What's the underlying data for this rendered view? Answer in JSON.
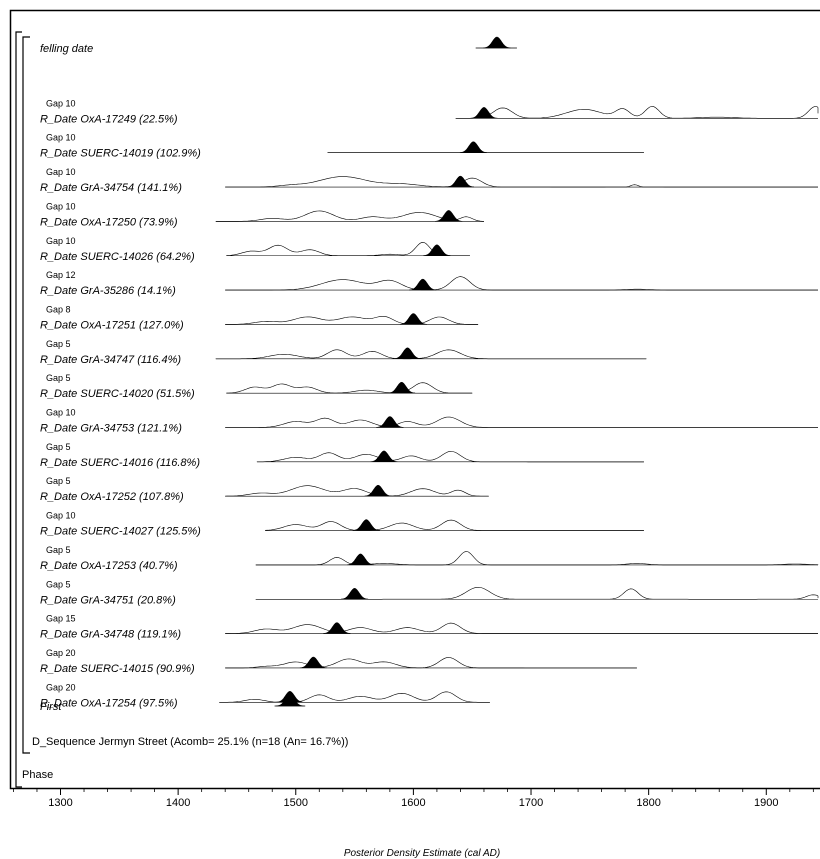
{
  "chart_data": {
    "type": "line",
    "xlabel": "Posterior Density Estimate (cal AD)",
    "xlim": [
      1260,
      1950
    ],
    "x_ticks": [
      1300,
      1400,
      1500,
      1600,
      1700,
      1800,
      1900
    ],
    "group_labels": {
      "sequence": "D_Sequence Jermyn Street (Acomb= 25.1% (n=18 (An= 16.7%))",
      "phase": "Phase"
    },
    "rows": [
      {
        "label": "felling date",
        "gap": "",
        "range": [
          1653,
          1688
        ],
        "peak": 1671,
        "bumps": []
      },
      {
        "label": "R_Date OxA-17249 (22.5%)",
        "gap": "Gap 10",
        "range": [
          1636,
          1950
        ],
        "peak": 1660,
        "bumps": [
          [
            1676,
            8,
            0.35
          ],
          [
            1745,
            15,
            0.3
          ],
          [
            1778,
            6,
            0.3
          ],
          [
            1803,
            6,
            0.4
          ],
          [
            1858,
            15,
            0.04
          ],
          [
            1942,
            6,
            0.4
          ]
        ]
      },
      {
        "label": "R_Date SUERC-14019 (102.9%)",
        "gap": "Gap 10",
        "range": [
          1527,
          1796
        ],
        "peak": 1651,
        "bumps": []
      },
      {
        "label": "R_Date GrA-34754 (141.1%)",
        "gap": "Gap 10",
        "range": [
          1440,
          1950
        ],
        "peak": 1640,
        "bumps": [
          [
            1495,
            10,
            0.05
          ],
          [
            1540,
            20,
            0.35
          ],
          [
            1590,
            15,
            0.1
          ],
          [
            1650,
            8,
            0.3
          ],
          [
            1788,
            3,
            0.08
          ]
        ]
      },
      {
        "label": "R_Date OxA-17250 (73.9%)",
        "gap": "Gap 10",
        "range": [
          1432,
          1660
        ],
        "peak": 1630,
        "bumps": [
          [
            1480,
            10,
            0.1
          ],
          [
            1520,
            12,
            0.35
          ],
          [
            1565,
            10,
            0.15
          ],
          [
            1605,
            14,
            0.3
          ],
          [
            1645,
            5,
            0.15
          ]
        ]
      },
      {
        "label": "R_Date SUERC-14026 (64.2%)",
        "gap": "Gap 10",
        "range": [
          1441,
          1648
        ],
        "peak": 1620,
        "bumps": [
          [
            1462,
            8,
            0.15
          ],
          [
            1485,
            8,
            0.35
          ],
          [
            1512,
            8,
            0.2
          ],
          [
            1580,
            8,
            0.05
          ],
          [
            1608,
            6,
            0.45
          ]
        ]
      },
      {
        "label": "R_Date GrA-35286 (14.1%)",
        "gap": "Gap 12",
        "range": [
          1440,
          1950
        ],
        "peak": 1608,
        "bumps": [
          [
            1540,
            18,
            0.35
          ],
          [
            1580,
            10,
            0.3
          ],
          [
            1640,
            8,
            0.45
          ],
          [
            1790,
            10,
            0.03
          ]
        ]
      },
      {
        "label": "R_Date OxA-17251 (127.0%)",
        "gap": "Gap 8",
        "range": [
          1440,
          1655
        ],
        "peak": 1600,
        "bumps": [
          [
            1475,
            10,
            0.1
          ],
          [
            1510,
            12,
            0.25
          ],
          [
            1548,
            12,
            0.25
          ],
          [
            1575,
            8,
            0.25
          ],
          [
            1622,
            8,
            0.25
          ]
        ]
      },
      {
        "label": "R_Date GrA-34747 (116.4%)",
        "gap": "Gap 5",
        "range": [
          1432,
          1798
        ],
        "peak": 1595,
        "bumps": [
          [
            1490,
            12,
            0.15
          ],
          [
            1535,
            8,
            0.3
          ],
          [
            1565,
            8,
            0.25
          ],
          [
            1630,
            10,
            0.3
          ]
        ]
      },
      {
        "label": "R_Date SUERC-14020 (51.5%)",
        "gap": "Gap 5",
        "range": [
          1441,
          1650
        ],
        "peak": 1590,
        "bumps": [
          [
            1465,
            8,
            0.2
          ],
          [
            1488,
            8,
            0.3
          ],
          [
            1510,
            8,
            0.2
          ],
          [
            1560,
            10,
            0.1
          ],
          [
            1608,
            8,
            0.35
          ]
        ]
      },
      {
        "label": "R_Date GrA-34753 (121.1%)",
        "gap": "Gap 10",
        "range": [
          1440,
          1950
        ],
        "peak": 1580,
        "bumps": [
          [
            1500,
            10,
            0.2
          ],
          [
            1525,
            8,
            0.3
          ],
          [
            1555,
            10,
            0.25
          ],
          [
            1595,
            8,
            0.2
          ],
          [
            1630,
            10,
            0.35
          ]
        ]
      },
      {
        "label": "R_Date SUERC-14016 (116.8%)",
        "gap": "Gap 5",
        "range": [
          1467,
          1796
        ],
        "peak": 1575,
        "bumps": [
          [
            1500,
            10,
            0.15
          ],
          [
            1528,
            8,
            0.3
          ],
          [
            1560,
            10,
            0.25
          ],
          [
            1598,
            8,
            0.2
          ],
          [
            1632,
            8,
            0.35
          ]
        ]
      },
      {
        "label": "R_Date OxA-17252 (107.8%)",
        "gap": "Gap 5",
        "range": [
          1440,
          1664
        ],
        "peak": 1570,
        "bumps": [
          [
            1470,
            10,
            0.1
          ],
          [
            1510,
            14,
            0.35
          ],
          [
            1550,
            10,
            0.25
          ],
          [
            1608,
            10,
            0.25
          ],
          [
            1638,
            6,
            0.2
          ]
        ]
      },
      {
        "label": "R_Date SUERC-14027 (125.5%)",
        "gap": "Gap 10",
        "range": [
          1474,
          1796
        ],
        "peak": 1560,
        "bumps": [
          [
            1500,
            10,
            0.2
          ],
          [
            1530,
            8,
            0.3
          ],
          [
            1590,
            10,
            0.25
          ],
          [
            1632,
            8,
            0.35
          ]
        ]
      },
      {
        "label": "R_Date OxA-17253 (40.7%)",
        "gap": "Gap 5",
        "range": [
          1466,
          1950
        ],
        "peak": 1555,
        "bumps": [
          [
            1535,
            6,
            0.25
          ],
          [
            1575,
            10,
            0.05
          ],
          [
            1645,
            6,
            0.45
          ],
          [
            1790,
            8,
            0.05
          ],
          [
            1925,
            10,
            0.03
          ]
        ]
      },
      {
        "label": "R_Date GrA-34751 (20.8%)",
        "gap": "Gap 5",
        "range": [
          1466,
          1950
        ],
        "peak": 1550,
        "bumps": [
          [
            1655,
            10,
            0.4
          ],
          [
            1785,
            6,
            0.35
          ],
          [
            1940,
            6,
            0.15
          ]
        ]
      },
      {
        "label": "R_Date GrA-34748 (119.1%)",
        "gap": "Gap 15",
        "range": [
          1440,
          1950
        ],
        "peak": 1535,
        "bumps": [
          [
            1475,
            10,
            0.15
          ],
          [
            1510,
            12,
            0.3
          ],
          [
            1555,
            10,
            0.2
          ],
          [
            1595,
            10,
            0.2
          ],
          [
            1632,
            8,
            0.35
          ]
        ]
      },
      {
        "label": "R_Date SUERC-14015 (90.9%)",
        "gap": "Gap 20",
        "range": [
          1440,
          1790
        ],
        "peak": 1515,
        "bumps": [
          [
            1475,
            8,
            0.05
          ],
          [
            1500,
            10,
            0.2
          ],
          [
            1545,
            10,
            0.3
          ],
          [
            1575,
            10,
            0.2
          ],
          [
            1630,
            8,
            0.35
          ]
        ]
      },
      {
        "label": "R_Date OxA-17254 (97.5%)",
        "gap": "Gap 20",
        "range": [
          1435,
          1665
        ],
        "peak": 1495,
        "bumps": [
          [
            1465,
            8,
            0.1
          ],
          [
            1520,
            8,
            0.25
          ],
          [
            1555,
            10,
            0.2
          ],
          [
            1590,
            10,
            0.3
          ],
          [
            1628,
            8,
            0.35
          ]
        ]
      },
      {
        "label": "First",
        "gap": "",
        "range": [
          1482,
          1508
        ],
        "peak": 1495,
        "bumps": []
      }
    ]
  }
}
